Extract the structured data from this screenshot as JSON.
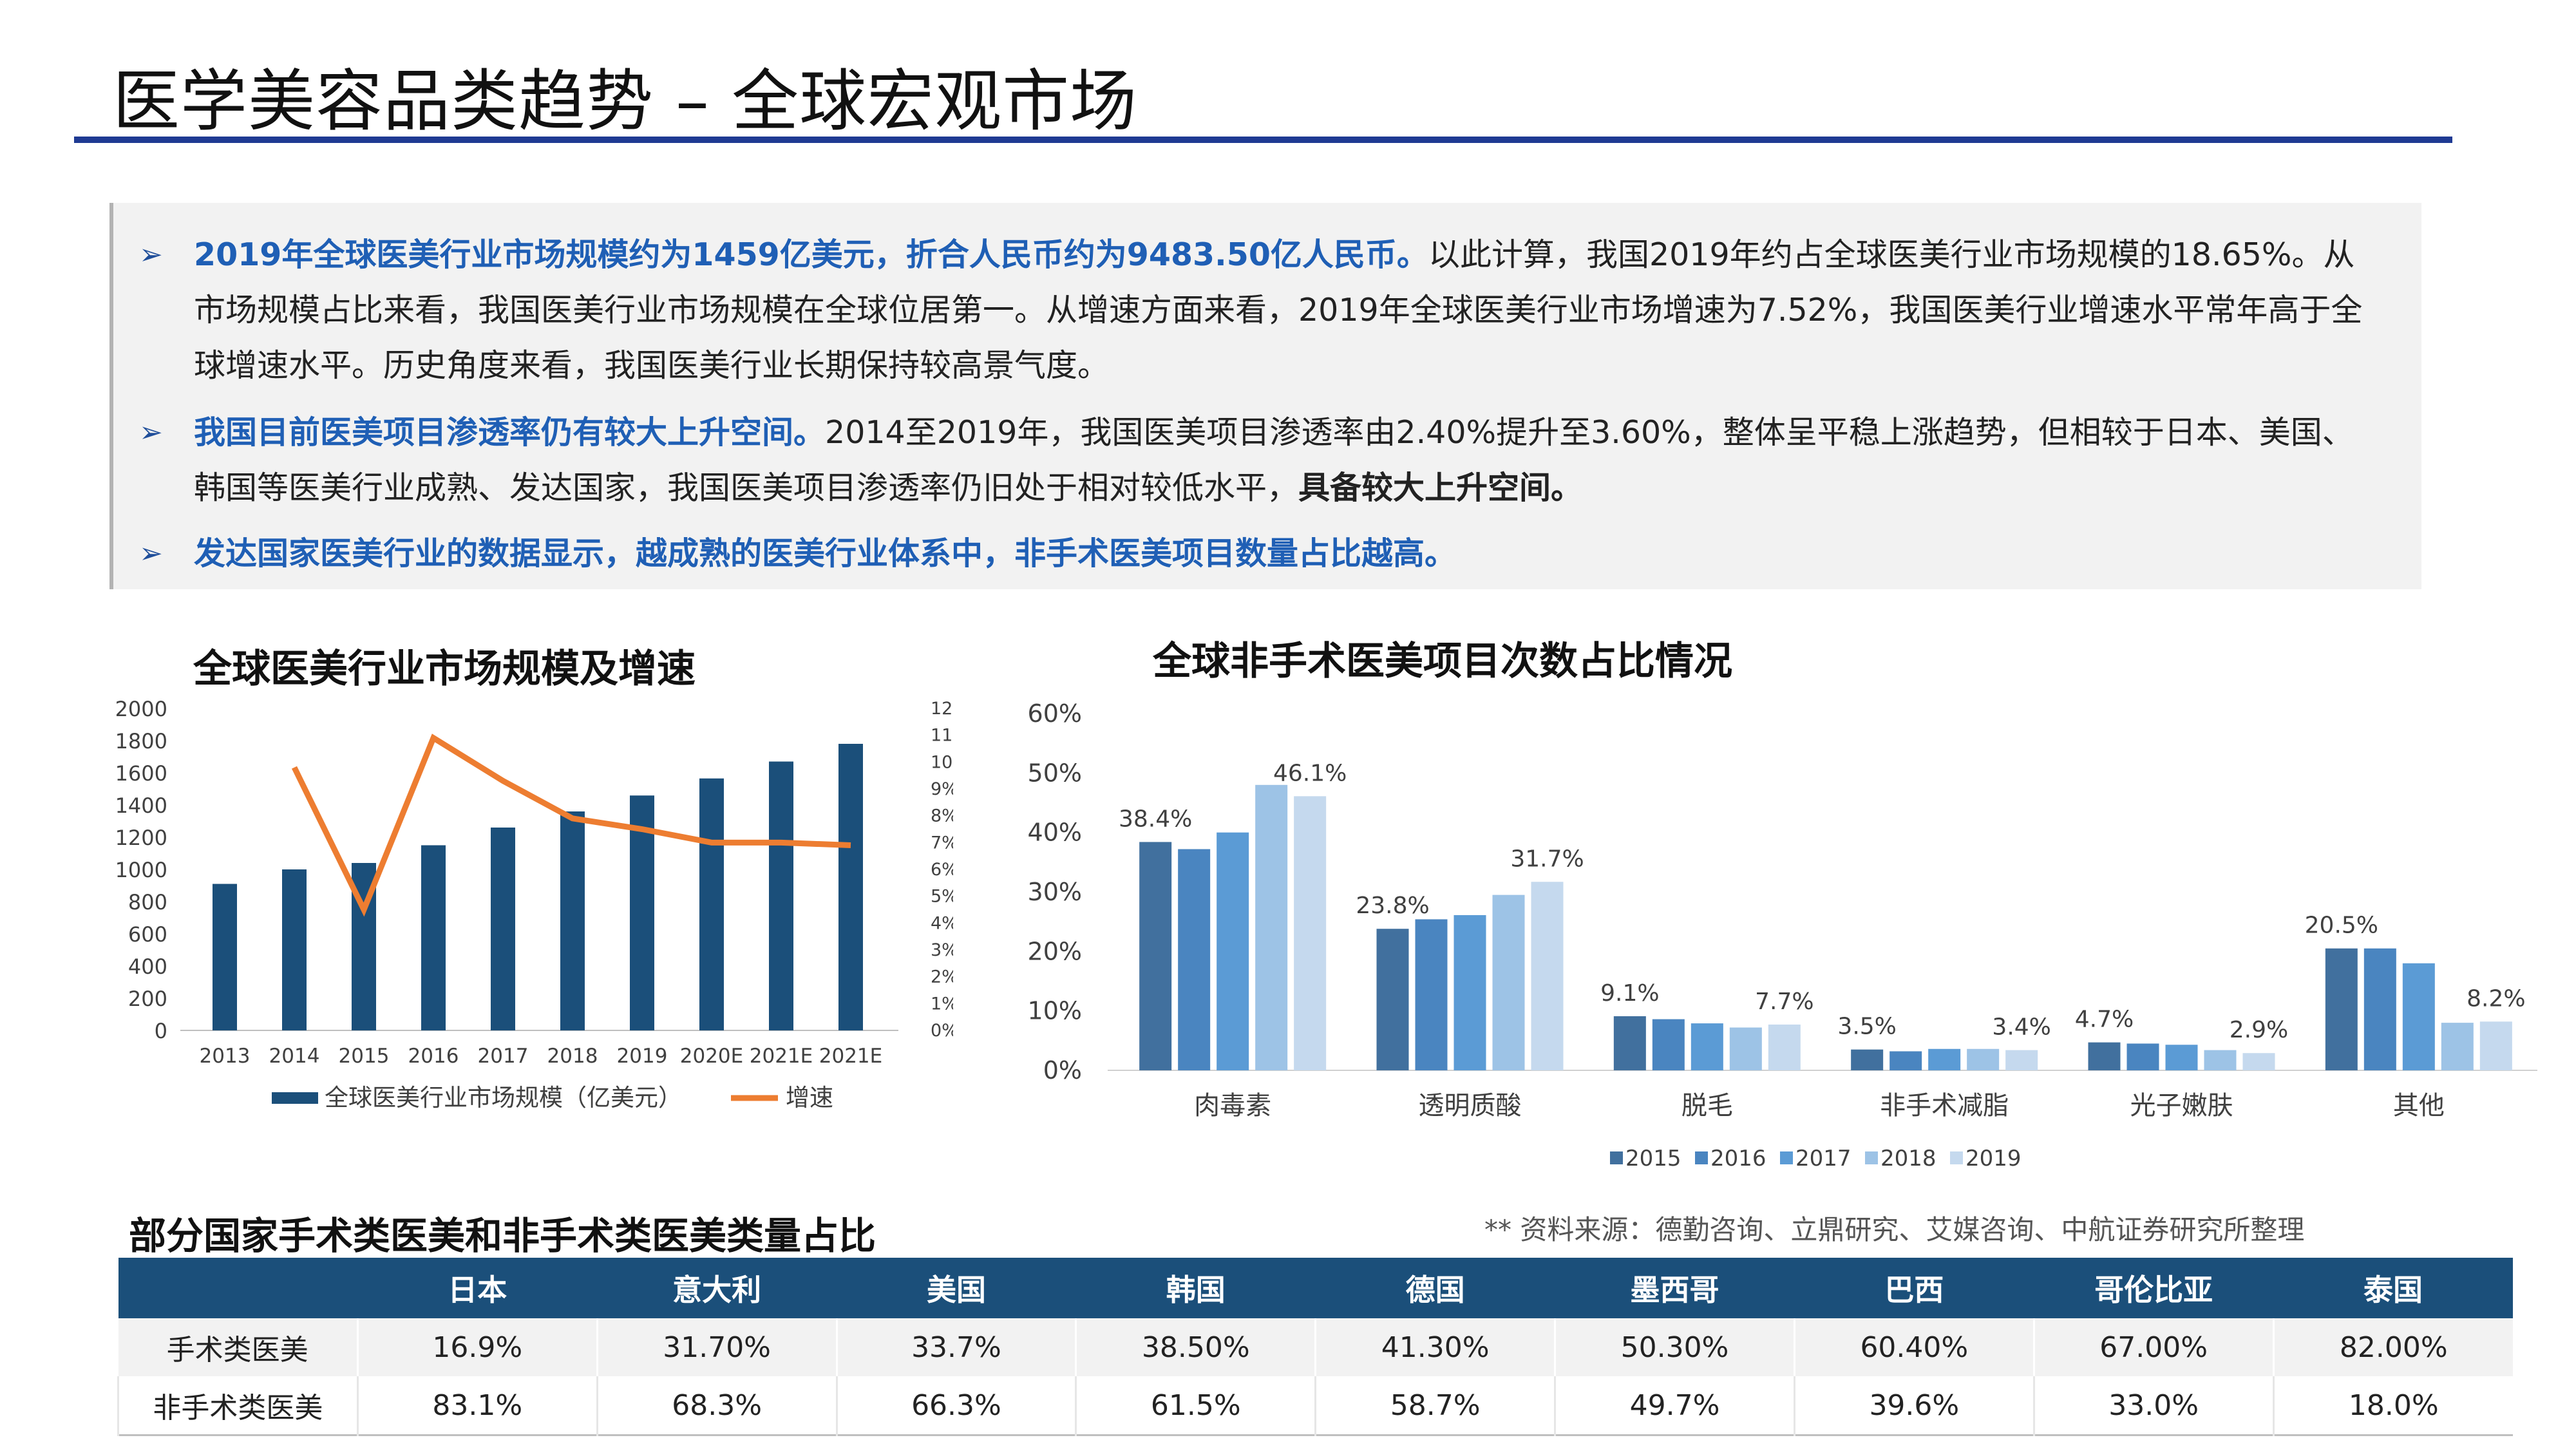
{
  "page": {
    "title": "医学美容品类趋势 – 全球宏观市场"
  },
  "summary": [
    {
      "highlight": "2019年全球医美行业市场规模约为1459亿美元，折合人民币约为9483.50亿人民币。",
      "text": "以此计算，我国2019年约占全球医美行业市场规模的18.65%。从市场规模占比来看，我国医美行业市场规模在全球位居第一。从增速方面来看，2019年全球医美行业市场增速为7.52%，我国医美行业增速水平常年高于全球增速水平。历史角度来看，我国医美行业长期保持较高景气度。"
    },
    {
      "highlight": "我国目前医美项目渗透率仍有较大上升空间。",
      "text": "2014至2019年，我国医美项目渗透率由2.40%提升至3.60%，整体呈平稳上涨趋势，但相较于日本、美国、韩国等医美行业成熟、发达国家，我国医美项目渗透率仍旧处于相对较低水平，",
      "text_bold": "具备较大上升空间。"
    },
    {
      "highlight": "发达国家医美行业的数据显示，越成熟的医美行业体系中，非手术医美项目数量占比越高。",
      "text": ""
    }
  ],
  "icons": {
    "bullet": "arrow-bullet-icon"
  },
  "colors": {
    "bar_navy": "#1b4f7a",
    "line_orange": "#ed7d31",
    "highlight_blue": "#1f5fb5",
    "y2015": "#41709e",
    "y2016": "#4a85c0",
    "y2017": "#5b9bd5",
    "y2018": "#9dc3e6",
    "y2019": "#c5d9ee"
  },
  "chart_data": [
    {
      "type": "bar",
      "title": "全球医美行业市场规模及增速",
      "categories": [
        "2013",
        "2014",
        "2015",
        "2016",
        "2017",
        "2018",
        "2019",
        "2020E",
        "2021E",
        "2021E"
      ],
      "series": [
        {
          "name": "全球医美行业市场规模（亿美元）",
          "type": "bar",
          "axis": "left",
          "values": [
            910,
            1000,
            1040,
            1150,
            1260,
            1360,
            1459,
            1565,
            1670,
            1780
          ]
        },
        {
          "name": "增速",
          "type": "line",
          "axis": "right",
          "values": [
            null,
            9.8,
            4.5,
            10.9,
            9.3,
            7.9,
            7.5,
            7.0,
            7.0,
            6.9
          ]
        }
      ],
      "left_axis": {
        "ylim": [
          0,
          2000
        ],
        "ticks": [
          "0",
          "200",
          "400",
          "600",
          "800",
          "1000",
          "1200",
          "1400",
          "1600",
          "1800",
          "2000"
        ]
      },
      "right_axis": {
        "ylim": [
          0,
          12
        ],
        "ticks": [
          "0%",
          "1%",
          "2%",
          "3%",
          "4%",
          "5%",
          "6%",
          "7%",
          "8%",
          "9%",
          "10%",
          "11%",
          "12%"
        ]
      },
      "legend": "bottom",
      "grid": false
    },
    {
      "type": "bar",
      "title": "全球非手术医美项目次数占比情况",
      "categories": [
        "肉毒素",
        "透明质酸",
        "脱毛",
        "非手术减脂",
        "光子嫩肤",
        "其他"
      ],
      "series": [
        {
          "name": "2015",
          "values": [
            38.4,
            23.8,
            9.1,
            3.5,
            4.7,
            20.5
          ]
        },
        {
          "name": "2016",
          "values": [
            37.2,
            25.4,
            8.6,
            3.2,
            4.5,
            20.5
          ]
        },
        {
          "name": "2017",
          "values": [
            40.0,
            26.1,
            7.9,
            3.6,
            4.3,
            18.0
          ]
        },
        {
          "name": "2018",
          "values": [
            48.0,
            29.5,
            7.2,
            3.6,
            3.4,
            8.0
          ]
        },
        {
          "name": "2019",
          "values": [
            46.1,
            31.7,
            7.7,
            3.4,
            2.9,
            8.2
          ]
        }
      ],
      "data_labels": [
        [
          "38.4%",
          null,
          null,
          null,
          "46.1%"
        ],
        [
          "23.8%",
          null,
          null,
          null,
          "31.7%"
        ],
        [
          "9.1%",
          null,
          null,
          null,
          "7.7%"
        ],
        [
          "3.5%",
          null,
          null,
          null,
          "3.4%"
        ],
        [
          "4.7%",
          null,
          null,
          null,
          "2.9%"
        ],
        [
          "20.5%",
          null,
          null,
          null,
          "8.2%"
        ]
      ],
      "ylim": [
        0,
        60
      ],
      "yticks": [
        "0%",
        "10%",
        "20%",
        "30%",
        "40%",
        "50%",
        "60%"
      ],
      "legend": "bottom",
      "grid": false
    },
    {
      "type": "table",
      "title": "部分国家手术类医美和非手术类医美类量占比",
      "columns": [
        "",
        "日本",
        "意大利",
        "美国",
        "韩国",
        "德国",
        "墨西哥",
        "巴西",
        "哥伦比亚",
        "泰国"
      ],
      "rows": [
        [
          "手术类医美",
          "16.9%",
          "31.70%",
          "33.7%",
          "38.50%",
          "41.30%",
          "50.30%",
          "60.40%",
          "67.00%",
          "82.00%"
        ],
        [
          "非手术类医美",
          "83.1%",
          "68.3%",
          "66.3%",
          "61.5%",
          "58.7%",
          "49.7%",
          "39.6%",
          "33.0%",
          "18.0%"
        ]
      ]
    }
  ],
  "source": "** 资料来源：德勤咨询、立鼎研究、艾媒咨询、中航证券研究所整理"
}
